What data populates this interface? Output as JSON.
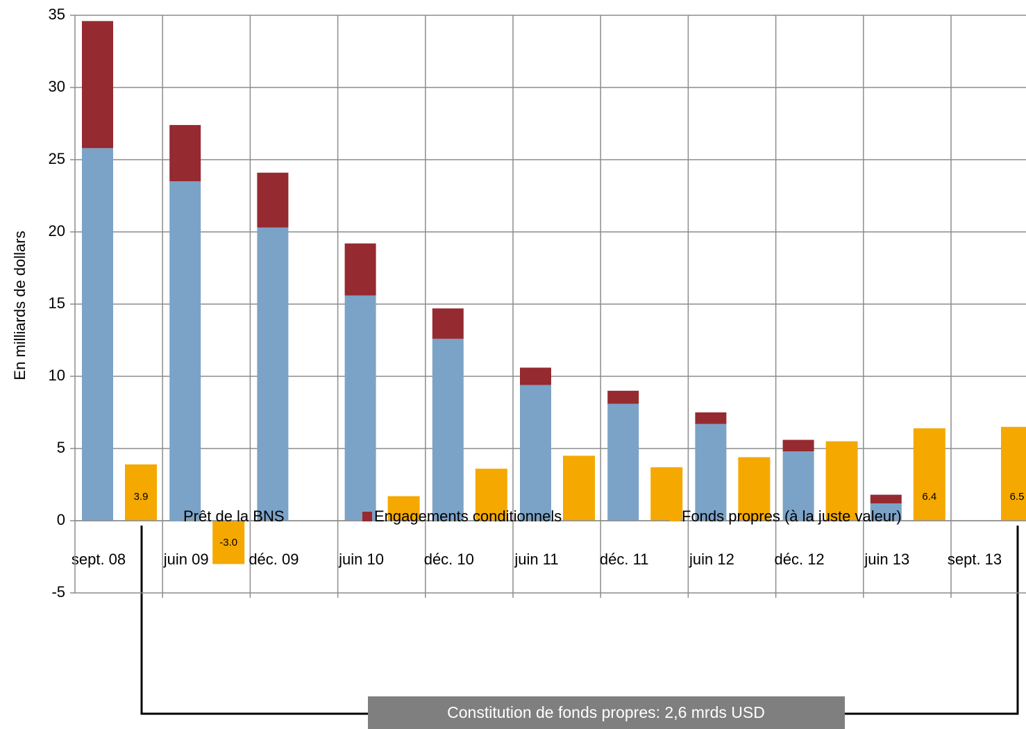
{
  "chart_data": {
    "type": "bar",
    "y_label": "En milliards de dollars",
    "categories": [
      "sept. 08",
      "juin 09",
      "déc. 09",
      "juin 10",
      "déc. 10",
      "juin 11",
      "déc. 11",
      "juin 12",
      "déc. 12",
      "juin 13",
      "sept. 13"
    ],
    "series": [
      {
        "name": "Prêt de la BNS",
        "color": "#7ba3c8",
        "values": [
          25.8,
          23.5,
          20.3,
          15.6,
          12.6,
          9.4,
          8.1,
          6.7,
          4.8,
          1.2,
          null
        ]
      },
      {
        "name": "Engagements conditionnels",
        "color": "#952a30",
        "values": [
          8.8,
          3.9,
          3.8,
          3.6,
          2.1,
          1.2,
          0.9,
          0.8,
          0.8,
          0.6,
          null
        ]
      },
      {
        "name": "Fonds propres (à la juste valeur)",
        "color": "#f5a800",
        "values": [
          3.9,
          -3.0,
          null,
          1.7,
          3.6,
          4.5,
          3.7,
          4.4,
          5.5,
          6.4,
          6.5
        ],
        "value_labels": [
          "3.9",
          "-3.0",
          null,
          null,
          null,
          null,
          null,
          null,
          null,
          "6.4",
          "6.5"
        ]
      }
    ],
    "ylim": [
      -5,
      35
    ],
    "yticks": [
      -5,
      0,
      5,
      10,
      15,
      20,
      25,
      30,
      35
    ],
    "grid": true,
    "annotation": "Constitution de fonds propres: 2,6 mrds USD"
  }
}
